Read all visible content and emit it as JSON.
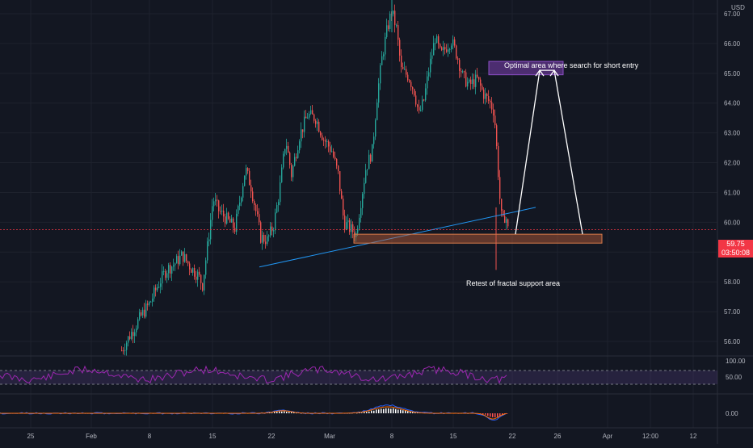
{
  "price_axis": {
    "currency": "USD",
    "ticks": [
      "67.00",
      "66.00",
      "65.00",
      "64.00",
      "63.00",
      "62.00",
      "61.00",
      "60.00",
      "58.00",
      "57.00",
      "56.00"
    ],
    "last_price": "59.75",
    "countdown": "03:50:08"
  },
  "rsi": {
    "ticks": [
      "100.00",
      "50.00"
    ]
  },
  "macd": {
    "ticks": [
      "0.00"
    ]
  },
  "time_axis": {
    "ticks": [
      "25",
      "Feb",
      "8",
      "15",
      "22",
      "Mar",
      "8",
      "15",
      "22",
      "26",
      "Apr",
      "12:00",
      "12"
    ]
  },
  "annotations": {
    "short_entry": "Optimal area where search for short entry",
    "support": "Retest of fractal support area"
  },
  "colors": {
    "background": "#131722",
    "up": "#26a69a",
    "down": "#ef5350",
    "rsi_line": "#9c27b0",
    "trendline": "#2196f3",
    "support_zone": "#c0603a",
    "short_zone": "#7b3fb0",
    "last_price": "#f23645",
    "macd_line": "#2962ff",
    "signal_line": "#ff6d00"
  },
  "chart_data": {
    "type": "candlestick",
    "price_range": [
      55.5,
      67.2
    ],
    "last_price": 59.75,
    "close_path": [
      [
        150,
        55.7
      ],
      [
        160,
        56.2
      ],
      [
        175,
        56.9
      ],
      [
        185,
        57.3
      ],
      [
        195,
        57.9
      ],
      [
        205,
        58.4
      ],
      [
        215,
        58.6
      ],
      [
        225,
        58.9
      ],
      [
        235,
        58.5
      ],
      [
        245,
        58.2
      ],
      [
        250,
        57.9
      ],
      [
        258,
        59.6
      ],
      [
        263,
        60.8
      ],
      [
        270,
        60.4
      ],
      [
        280,
        60.1
      ],
      [
        290,
        59.8
      ],
      [
        296,
        60.7
      ],
      [
        303,
        61.8
      ],
      [
        310,
        61.2
      ],
      [
        318,
        60.1
      ],
      [
        322,
        59.5
      ],
      [
        330,
        59.4
      ],
      [
        338,
        59.9
      ],
      [
        345,
        61.0
      ],
      [
        353,
        62.8
      ],
      [
        360,
        61.6
      ],
      [
        370,
        62.9
      ],
      [
        380,
        63.6
      ],
      [
        390,
        63.5
      ],
      [
        400,
        62.8
      ],
      [
        410,
        62.4
      ],
      [
        418,
        61.6
      ],
      [
        425,
        60.0
      ],
      [
        432,
        59.8
      ],
      [
        440,
        59.6
      ],
      [
        446,
        60.7
      ],
      [
        452,
        61.8
      ],
      [
        460,
        62.4
      ],
      [
        466,
        64.2
      ],
      [
        472,
        65.5
      ],
      [
        478,
        66.4
      ],
      [
        484,
        67.1
      ],
      [
        490,
        66.5
      ],
      [
        496,
        65.1
      ],
      [
        505,
        64.9
      ],
      [
        512,
        64.4
      ],
      [
        518,
        63.6
      ],
      [
        524,
        64.1
      ],
      [
        530,
        65.1
      ],
      [
        538,
        66.2
      ],
      [
        545,
        65.6
      ],
      [
        552,
        65.9
      ],
      [
        558,
        66.1
      ],
      [
        565,
        65.6
      ],
      [
        572,
        64.9
      ],
      [
        580,
        64.6
      ],
      [
        590,
        64.8
      ],
      [
        598,
        64.3
      ],
      [
        606,
        64.0
      ],
      [
        611,
        63.7
      ],
      [
        615,
        62.1
      ],
      [
        618,
        60.8
      ],
      [
        621,
        59.9
      ],
      [
        625,
        60.3
      ],
      [
        628,
        59.75
      ]
    ],
    "trendline": {
      "from": [
        321,
        58.5
      ],
      "to": [
        663,
        60.5
      ]
    },
    "support_zone": {
      "x_range": [
        438,
        745
      ],
      "price_range": [
        59.3,
        59.6
      ]
    },
    "short_entry_zone": {
      "x_range": [
        605,
        697
      ],
      "price_range": [
        64.95,
        65.4
      ]
    },
    "arrows": [
      [
        638,
        59.6
      ],
      [
        668,
        65.1
      ],
      [
        686,
        65.1
      ],
      [
        721,
        59.6
      ]
    ],
    "rsi_band": [
      30,
      70
    ]
  }
}
